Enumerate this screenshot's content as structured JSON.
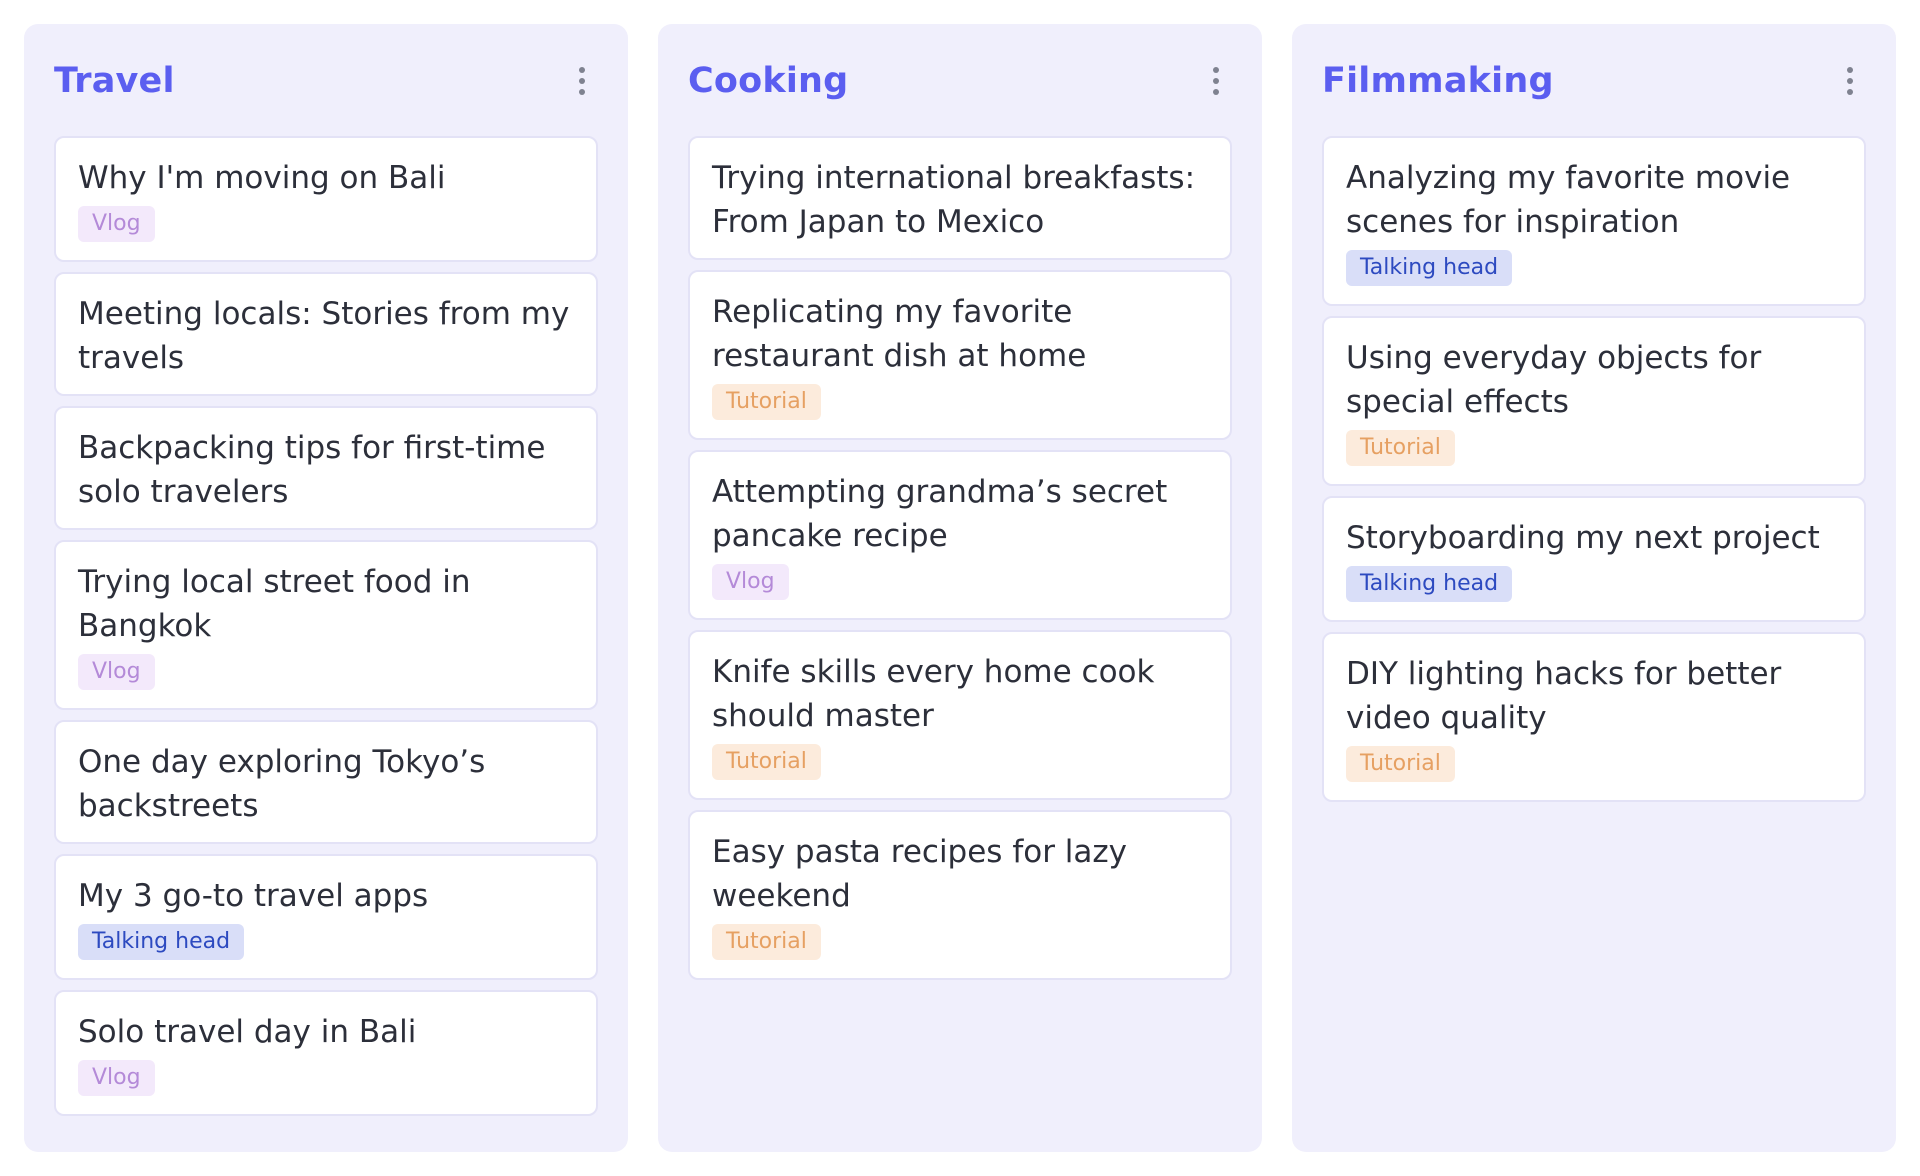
{
  "columns": [
    {
      "title": "Travel",
      "cards": [
        {
          "title": "Why I'm moving on Bali",
          "tag": "Vlog",
          "tag_type": "vlog"
        },
        {
          "title": "Meeting locals: Stories from my travels",
          "tag": "",
          "tag_type": ""
        },
        {
          "title": "Backpacking tips for first-time solo travelers",
          "tag": "",
          "tag_type": ""
        },
        {
          "title": "Trying local street food in Bangkok",
          "tag": "Vlog",
          "tag_type": "vlog"
        },
        {
          "title": "One day exploring Tokyo’s backstreets",
          "tag": "",
          "tag_type": ""
        },
        {
          "title": "My 3 go-to travel apps",
          "tag": "Talking head",
          "tag_type": "talking"
        },
        {
          "title": "Solo travel day in Bali",
          "tag": "Vlog",
          "tag_type": "vlog"
        }
      ]
    },
    {
      "title": "Cooking",
      "cards": [
        {
          "title": "Trying international breakfasts: From Japan to Mexico",
          "tag": "",
          "tag_type": ""
        },
        {
          "title": "Replicating my favorite restaurant dish at home",
          "tag": "Tutorial",
          "tag_type": "tutorial"
        },
        {
          "title": "Attempting grandma’s secret pancake recipe",
          "tag": "Vlog",
          "tag_type": "vlog"
        },
        {
          "title": "Knife skills every home cook should master",
          "tag": "Tutorial",
          "tag_type": "tutorial"
        },
        {
          "title": "Easy pasta recipes for lazy weekend",
          "tag": "Tutorial",
          "tag_type": "tutorial"
        }
      ]
    },
    {
      "title": "Filmmaking",
      "cards": [
        {
          "title": "Analyzing my favorite movie scenes for inspiration",
          "tag": "Talking head",
          "tag_type": "talking"
        },
        {
          "title": "Using everyday objects for special effects",
          "tag": "Tutorial",
          "tag_type": "tutorial"
        },
        {
          "title": "Storyboarding my next project",
          "tag": "Talking head",
          "tag_type": "talking"
        },
        {
          "title": "DIY lighting hacks for better video quality",
          "tag": "Tutorial",
          "tag_type": "tutorial"
        }
      ]
    }
  ],
  "icons": {
    "column_menu": "kebab-menu-icon"
  },
  "colors": {
    "column_bg": "#f0effc",
    "title": "#5b5ef0",
    "vlog_bg": "#f3e9fb",
    "vlog_text": "#b48ad8",
    "tutorial_bg": "#fcebdc",
    "tutorial_text": "#e6a062",
    "talking_bg": "#d9def8",
    "talking_text": "#2d4ac0"
  }
}
